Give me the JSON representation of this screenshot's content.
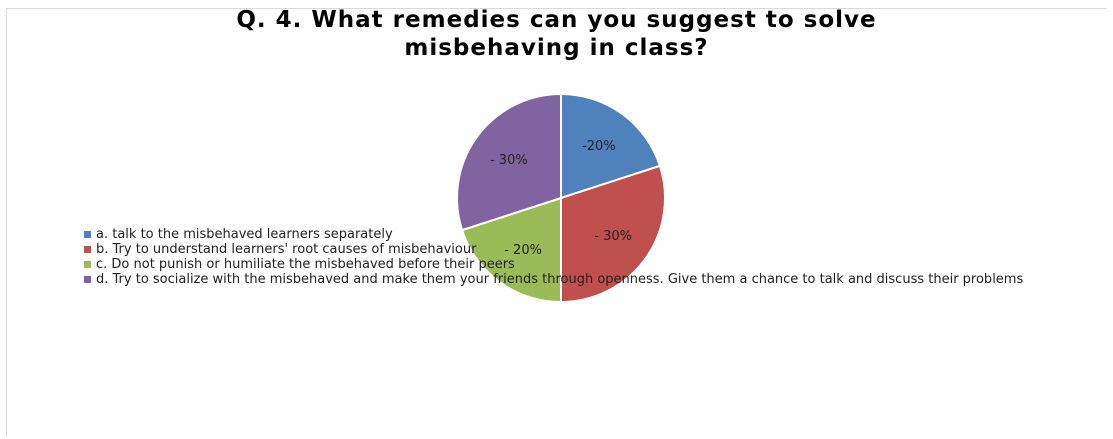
{
  "chart_data": {
    "type": "pie",
    "title_lines": [
      "Q. 4.  What remedies can you suggest to solve",
      "misbehaving in class?"
    ],
    "slices": [
      {
        "label": "a. talk to the misbehaved learners separately",
        "value": 20,
        "data_label": "-20%",
        "color": "#4f81bd"
      },
      {
        "label": "b. Try to understand learners' root causes of misbehaviour",
        "value": 30,
        "data_label": "- 30%",
        "color": "#c0504d"
      },
      {
        "label": "c.  Do not punish or humiliate the misbehaved before their peers",
        "value": 20,
        "data_label": "- 20%",
        "color": "#9bbb59"
      },
      {
        "label": "d. Try to socialize with the misbehaved and make them your friends through openness. Give them a chance to talk and discuss their problems",
        "value": 30,
        "data_label": "- 30%",
        "color": "#8064a2"
      }
    ],
    "legend_position": "left, overlapping pie"
  }
}
